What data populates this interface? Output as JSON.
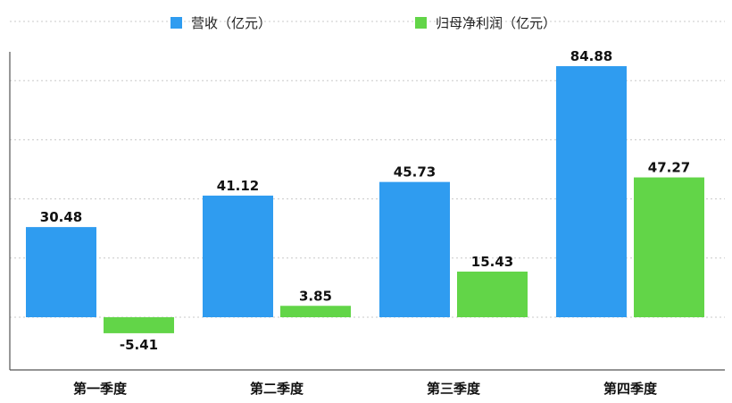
{
  "chart_data": {
    "type": "bar",
    "categories": [
      "第一季度",
      "第二季度",
      "第三季度",
      "第四季度"
    ],
    "series": [
      {
        "name": "营收（亿元）",
        "values": [
          30.48,
          41.12,
          45.73,
          84.88
        ],
        "color": "#2f9cf0"
      },
      {
        "name": "归母净利润（亿元）",
        "values": [
          -5.41,
          3.85,
          15.43,
          47.27
        ],
        "color": "#62d548"
      }
    ],
    "ylim": [
      -20,
      100
    ],
    "grid": true,
    "legend": "top-center",
    "value_labels": [
      "30.48",
      "41.12",
      "45.73",
      "84.88",
      "-5.41",
      "3.85",
      "15.43",
      "47.27"
    ]
  }
}
